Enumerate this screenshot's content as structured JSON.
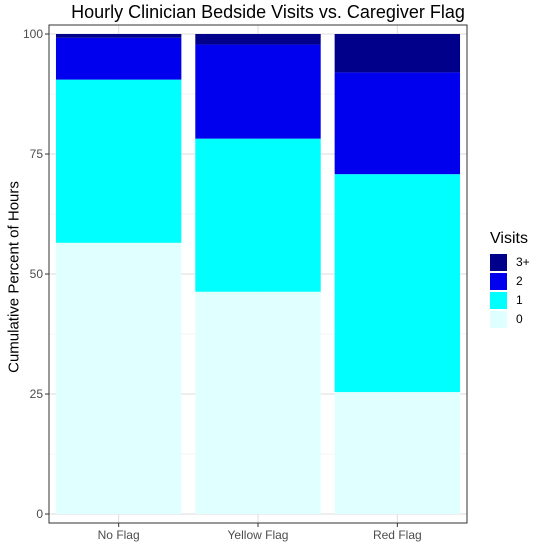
{
  "chart_data": {
    "type": "bar",
    "stacked": true,
    "title": "Hourly Clinician Bedside Visits vs. Caregiver Flag",
    "xlabel": "",
    "ylabel": "Cumulative Percent of Hours",
    "ylim": [
      0,
      100
    ],
    "yticks": [
      "0",
      "25",
      "50",
      "75",
      "100"
    ],
    "categories": [
      "No Flag",
      "Yellow Flag",
      "Red Flag"
    ],
    "grid": true,
    "legend": {
      "title": "Visits",
      "position": "right"
    },
    "series": [
      {
        "name": "0",
        "color": "#E0FFFF",
        "values": [
          56.5,
          46.3,
          25.4
        ]
      },
      {
        "name": "1",
        "color": "#00FFFF",
        "values": [
          34,
          31.9,
          45.4
        ]
      },
      {
        "name": "2",
        "color": "#0000EE",
        "values": [
          8.7,
          19.6,
          21.2
        ]
      },
      {
        "name": "3+",
        "color": "#00008B",
        "values": [
          0.8,
          2.2,
          8
        ]
      }
    ]
  }
}
